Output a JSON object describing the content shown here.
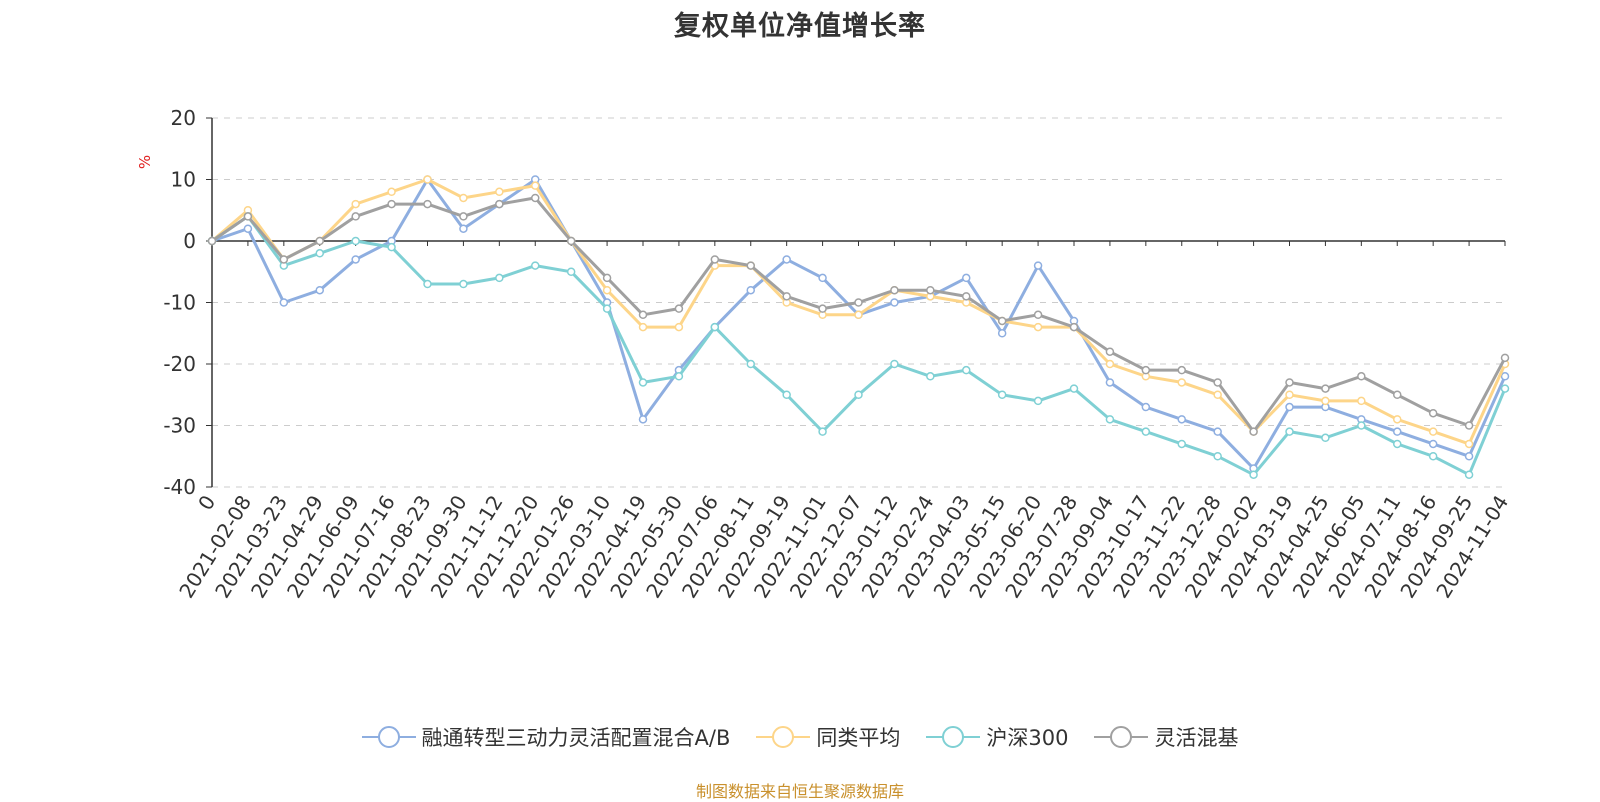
{
  "title": "复权单位净值增长率",
  "source_note": "制图数据来自恒生聚源数据库",
  "source_color": "#c9902c",
  "chart_data": {
    "type": "line",
    "title": "复权单位净值增长率",
    "ylabel": "%",
    "ylim": [
      -40,
      20
    ],
    "yticks": [
      20,
      10,
      0,
      -10,
      -20,
      -30,
      -40
    ],
    "grid": true,
    "legend": "bottom-center",
    "x_tick_labels": [
      "0",
      "2021-02-08",
      "2021-03-23",
      "2021-04-29",
      "2021-06-09",
      "2021-07-16",
      "2021-08-23",
      "2021-09-30",
      "2021-11-12",
      "2021-12-20",
      "2022-01-26",
      "2022-03-10",
      "2022-04-19",
      "2022-05-30",
      "2022-07-06",
      "2022-08-11",
      "2022-09-19",
      "2022-11-01",
      "2022-12-07",
      "2023-01-12",
      "2023-02-24",
      "2023-04-03",
      "2023-05-15",
      "2023-06-20",
      "2023-07-28",
      "2023-09-04",
      "2023-10-17",
      "2023-11-22",
      "2023-12-28",
      "2024-02-02",
      "2024-03-19",
      "2024-04-25",
      "2024-06-05",
      "2024-07-11",
      "2024-08-16",
      "2024-09-25",
      "2024-11-04"
    ],
    "series": [
      {
        "name": "融通转型三动力灵活配置混合A/B",
        "color": "#8eaee0",
        "values": [
          0,
          2,
          -10,
          -8,
          -3,
          0,
          10,
          2,
          6,
          10,
          0,
          -10,
          -29,
          -21,
          -14,
          -8,
          -3,
          -6,
          -12,
          -10,
          -9,
          -6,
          -15,
          -4,
          -13,
          -23,
          -27,
          -29,
          -31,
          -37,
          -27,
          -27,
          -29,
          -31,
          -33,
          -35,
          -22
        ]
      },
      {
        "name": "同类平均",
        "color": "#fdd589",
        "values": [
          0,
          5,
          -3,
          0,
          6,
          8,
          10,
          7,
          8,
          9,
          0,
          -8,
          -14,
          -14,
          -4,
          -4,
          -10,
          -12,
          -12,
          -8,
          -9,
          -10,
          -13,
          -14,
          -14,
          -20,
          -22,
          -23,
          -25,
          -31,
          -25,
          -26,
          -26,
          -29,
          -31,
          -33,
          -20
        ]
      },
      {
        "name": "沪深300",
        "color": "#7fd0d4",
        "values": [
          0,
          4,
          -4,
          -2,
          0,
          -1,
          -7,
          -7,
          -6,
          -4,
          -5,
          -11,
          -23,
          -22,
          -14,
          -20,
          -25,
          -31,
          -25,
          -20,
          -22,
          -21,
          -25,
          -26,
          -24,
          -29,
          -31,
          -33,
          -35,
          -38,
          -31,
          -32,
          -30,
          -33,
          -35,
          -38,
          -24
        ]
      },
      {
        "name": "灵活混基",
        "color": "#a0a0a0",
        "values": [
          0,
          4,
          -3,
          0,
          4,
          6,
          6,
          4,
          6,
          7,
          0,
          -6,
          -12,
          -11,
          -3,
          -4,
          -9,
          -11,
          -10,
          -8,
          -8,
          -9,
          -13,
          -12,
          -14,
          -18,
          -21,
          -21,
          -23,
          -31,
          -23,
          -24,
          -22,
          -25,
          -28,
          -30,
          -19
        ]
      }
    ]
  }
}
